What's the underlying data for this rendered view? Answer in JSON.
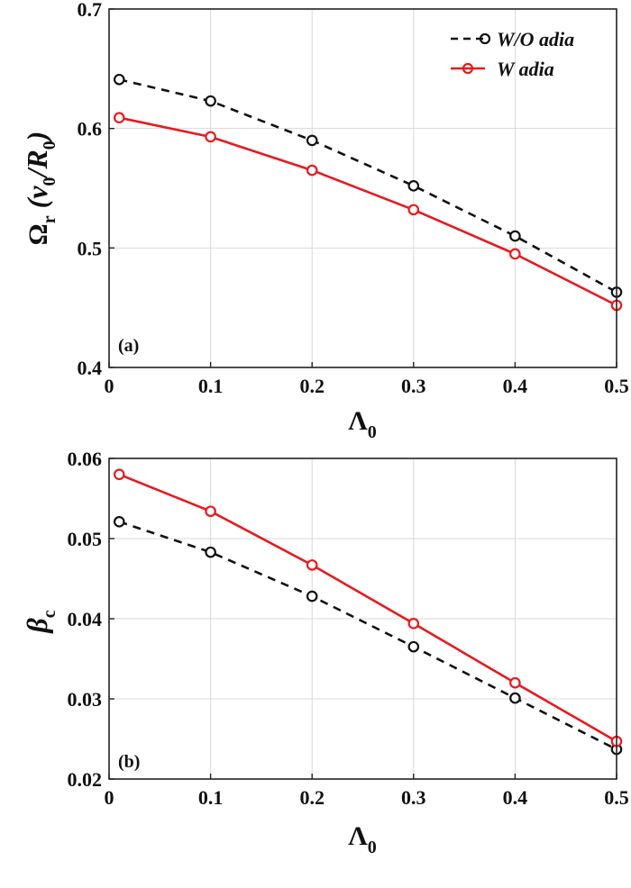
{
  "chart_data": [
    {
      "type": "line",
      "panel_label": "(a)",
      "xlabel": {
        "main": "Λ",
        "sub": "0"
      },
      "ylabel": {
        "main": "Ω",
        "sub1": "r",
        "mid": " (v",
        "sub2": "0",
        "mid2": "/R",
        "sub3": "0",
        "end": ")"
      },
      "xlim": [
        0,
        0.5
      ],
      "ylim": [
        0.4,
        0.7
      ],
      "xticks": [
        "0",
        "0.1",
        "0.2",
        "0.3",
        "0.4",
        "0.5"
      ],
      "yticks": [
        "0.4",
        "0.5",
        "0.6",
        "0.7"
      ],
      "grid": true,
      "legend_position": "top-right",
      "x": [
        0.01,
        0.1,
        0.2,
        0.3,
        0.4,
        0.5
      ],
      "series": [
        {
          "name": "W/O adia",
          "color": "#111111",
          "dashed": true,
          "values": [
            0.641,
            0.623,
            0.59,
            0.552,
            0.51,
            0.463
          ]
        },
        {
          "name": "W adia",
          "color": "#e8191e",
          "dashed": false,
          "values": [
            0.609,
            0.593,
            0.565,
            0.532,
            0.495,
            0.452
          ]
        }
      ]
    },
    {
      "type": "line",
      "panel_label": "(b)",
      "xlabel": {
        "main": "Λ",
        "sub": "0"
      },
      "ylabel": {
        "main": "β",
        "sub1": "c"
      },
      "xlim": [
        0,
        0.5
      ],
      "ylim": [
        0.02,
        0.06
      ],
      "xticks": [
        "0",
        "0.1",
        "0.2",
        "0.3",
        "0.4",
        "0.5"
      ],
      "yticks": [
        "0.02",
        "0.03",
        "0.04",
        "0.05",
        "0.06"
      ],
      "grid": true,
      "x": [
        0.01,
        0.1,
        0.2,
        0.3,
        0.4,
        0.5
      ],
      "series": [
        {
          "name": "W/O adia",
          "color": "#111111",
          "dashed": true,
          "values": [
            0.0521,
            0.0483,
            0.0428,
            0.0365,
            0.0301,
            0.0237
          ]
        },
        {
          "name": "W adia",
          "color": "#e8191e",
          "dashed": false,
          "values": [
            0.058,
            0.0534,
            0.0467,
            0.0394,
            0.032,
            0.0247
          ]
        }
      ]
    }
  ]
}
